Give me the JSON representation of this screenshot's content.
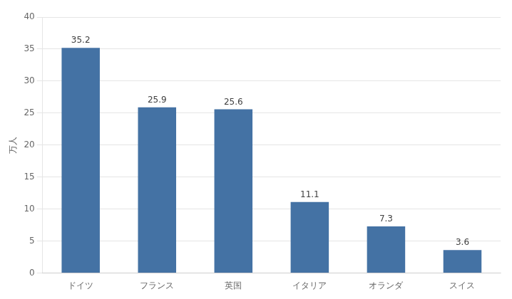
{
  "chart_data": {
    "type": "bar",
    "ylabel": "万人",
    "categories": [
      "ドイツ",
      "フランス",
      "英国",
      "イタリア",
      "オランダ",
      "スイス"
    ],
    "values": [
      35.2,
      25.9,
      25.6,
      11.1,
      7.3,
      3.6
    ],
    "color": "#4472a4",
    "ylim": [
      0,
      40
    ],
    "yticks": [
      0,
      5,
      10,
      15,
      20,
      25,
      30,
      35,
      40
    ],
    "grid": true,
    "data_labels": true
  }
}
